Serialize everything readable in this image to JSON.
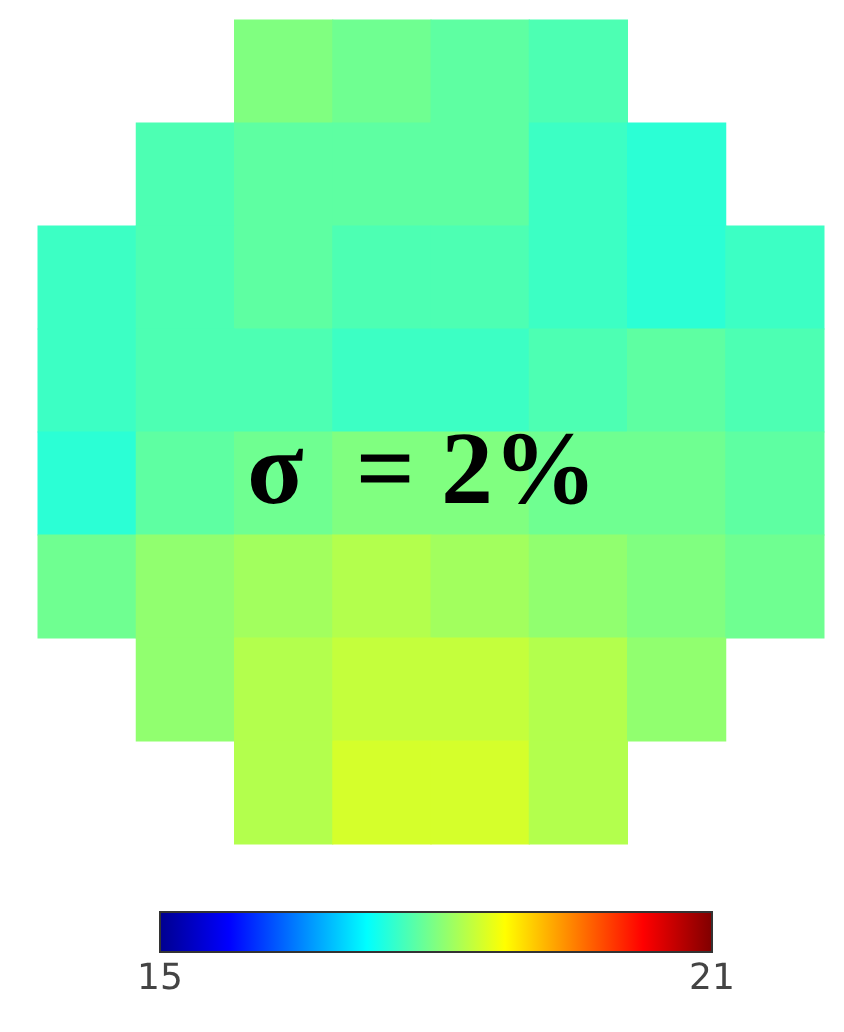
{
  "chart_data": {
    "type": "heatmap",
    "categories": [
      null,
      null,
      null,
      null,
      null,
      null,
      null,
      null
    ],
    "y_categories": [
      null,
      null,
      null,
      null,
      null,
      null,
      null,
      null
    ],
    "cells": [
      [
        null,
        null,
        18.0,
        17.9,
        17.8,
        17.7,
        null,
        null
      ],
      [
        null,
        17.7,
        17.8,
        17.8,
        17.8,
        17.6,
        17.5,
        null
      ],
      [
        17.6,
        17.7,
        17.8,
        17.7,
        17.7,
        17.6,
        17.5,
        17.6
      ],
      [
        17.6,
        17.7,
        17.7,
        17.6,
        17.6,
        17.7,
        17.8,
        17.7
      ],
      [
        17.5,
        17.8,
        17.9,
        18.0,
        18.0,
        17.9,
        17.9,
        17.8
      ],
      [
        17.9,
        18.1,
        18.2,
        18.3,
        18.2,
        18.1,
        18.0,
        17.9
      ],
      [
        null,
        18.1,
        18.3,
        18.4,
        18.4,
        18.3,
        18.1,
        null
      ],
      [
        null,
        null,
        18.3,
        18.5,
        18.5,
        18.3,
        null,
        null
      ]
    ],
    "clim": [
      15,
      21
    ],
    "cticks": [
      15,
      21
    ],
    "annotations": [
      "σ  = 2%"
    ]
  }
}
